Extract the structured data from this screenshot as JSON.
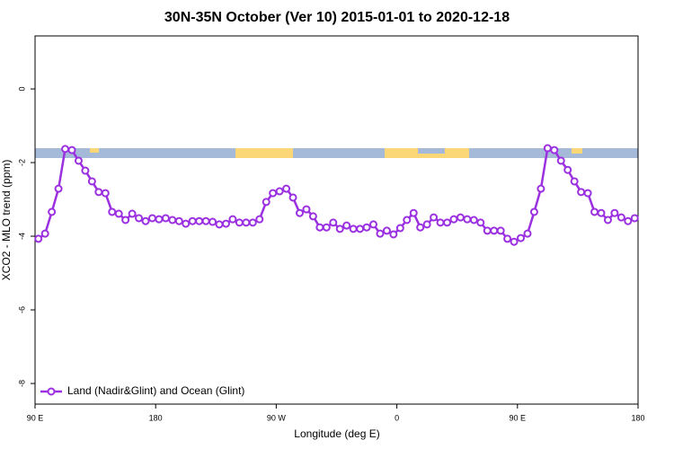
{
  "chart_data": {
    "type": "line",
    "title": "30N-35N October (Ver 10)   2015-01-01 to 2020-12-18",
    "x_label": "Longitude (deg E)",
    "y_label": "XCO2 - MLO trend (ppm)",
    "legend": "bottomleft",
    "xlim": [
      90,
      540
    ],
    "ylim": [
      -8.56,
      1.44
    ],
    "xticks": [
      {
        "value": 90,
        "label": "90 E"
      },
      180,
      {
        "value": 270,
        "label": "90 W"
      },
      {
        "value": 360,
        "label": "0"
      },
      {
        "value": 450,
        "label": "90 E"
      },
      {
        "value": 540,
        "label": "180"
      }
    ],
    "yticks": [
      0,
      -2,
      -4,
      -6,
      -8
    ],
    "x": [
      92.5,
      97.5,
      102.5,
      107.5,
      112.5,
      117.5,
      122.5,
      127.5,
      132.5,
      137.5,
      142.5,
      147.5,
      152.5,
      157.5,
      162.5,
      167.5,
      172.5,
      177.5,
      182.5,
      187.5,
      192.5,
      197.5,
      202.5,
      207.5,
      212.5,
      217.5,
      222.5,
      227.5,
      232.5,
      237.5,
      242.5,
      247.5,
      252.5,
      257.5,
      262.5,
      267.5,
      272.5,
      277.5,
      282.5,
      287.5,
      292.5,
      297.5,
      302.5,
      307.5,
      312.5,
      317.5,
      322.5,
      327.5,
      332.5,
      337.5,
      342.5,
      347.5,
      352.5,
      357.5,
      362.5,
      367.5,
      372.5,
      377.5,
      382.5,
      387.5,
      392.5,
      397.5,
      402.5,
      407.5,
      412.5,
      417.5,
      422.5,
      427.5,
      432.5,
      437.5,
      442.5,
      447.5,
      452.5,
      457.5,
      462.5,
      467.5,
      472.5,
      477.5,
      482.5,
      487.5,
      492.5,
      497.5,
      502.5,
      507.5,
      512.5,
      517.5,
      522.5,
      527.5,
      532.5,
      537.5
    ],
    "series": [
      {
        "name": "Land (Nadir&Glint) and Ocean (Glint)",
        "color": "#9b30e0",
        "values": [
          -4.07,
          -3.93,
          -3.34,
          -2.71,
          -1.63,
          -1.66,
          -1.95,
          -2.22,
          -2.51,
          -2.8,
          -2.83,
          -3.34,
          -3.39,
          -3.56,
          -3.39,
          -3.51,
          -3.59,
          -3.51,
          -3.54,
          -3.51,
          -3.56,
          -3.59,
          -3.66,
          -3.59,
          -3.59,
          -3.59,
          -3.61,
          -3.68,
          -3.66,
          -3.54,
          -3.63,
          -3.63,
          -3.63,
          -3.54,
          -3.07,
          -2.83,
          -2.78,
          -2.71,
          -2.95,
          -3.37,
          -3.27,
          -3.46,
          -3.76,
          -3.76,
          -3.63,
          -3.8,
          -3.71,
          -3.8,
          -3.8,
          -3.76,
          -3.68,
          -3.93,
          -3.85,
          -3.95,
          -3.78,
          -3.56,
          -3.37,
          -3.76,
          -3.68,
          -3.49,
          -3.63,
          -3.63,
          -3.54,
          -3.49,
          -3.54,
          -3.56,
          -3.63,
          -3.85,
          -3.85,
          -3.85,
          -4.07,
          -4.15,
          -4.05,
          -3.93,
          -3.34,
          -2.71,
          -1.61,
          -1.66,
          -1.95,
          -2.2,
          -2.51,
          -2.8,
          -2.83,
          -3.34,
          -3.37,
          -3.56,
          -3.37,
          -3.49,
          -3.59,
          -3.51
        ]
      }
    ]
  }
}
